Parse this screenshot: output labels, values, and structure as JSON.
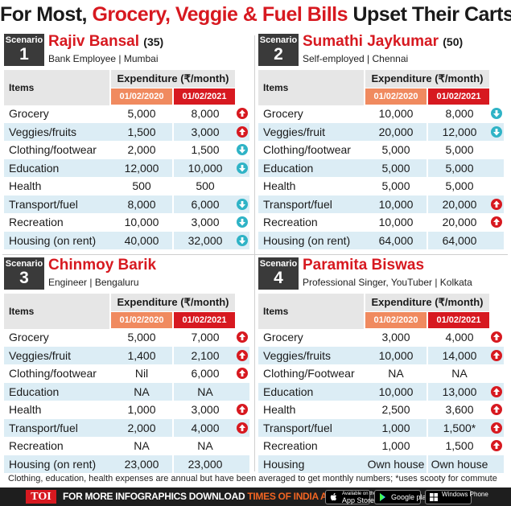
{
  "title": {
    "part1": "For Most, ",
    "part2": "Grocery, Veggie & Fuel Bills",
    "part3": " Upset Their Carts"
  },
  "colors": {
    "accent_red": "#d71920",
    "date_old": "#f08a5f",
    "alt_row": "#dcedf5",
    "down_arrow": "#2fb3c6"
  },
  "panels": [
    {
      "scenario_label": "Scenario",
      "scenario_number": "1",
      "name": "Rajiv Bansal",
      "age": "(35)",
      "job": "Bank Employee | Mumbai",
      "items_header": "Items",
      "expenditure_header": "Expenditure (₹/month)",
      "date1": "01/02/2020",
      "date2": "01/02/2021",
      "rows": [
        {
          "item": "Grocery",
          "v2020": "5,000",
          "v2021": "8,000",
          "trend": "up"
        },
        {
          "item": "Veggies/fruits",
          "v2020": "1,500",
          "v2021": "3,000",
          "trend": "up"
        },
        {
          "item": "Clothing/footwear",
          "v2020": "2,000",
          "v2021": "1,500",
          "trend": "down"
        },
        {
          "item": "Education",
          "v2020": "12,000",
          "v2021": "10,000",
          "trend": "down"
        },
        {
          "item": "Health",
          "v2020": "500",
          "v2021": "500",
          "trend": ""
        },
        {
          "item": "Transport/fuel",
          "v2020": "8,000",
          "v2021": "6,000",
          "trend": "down"
        },
        {
          "item": "Recreation",
          "v2020": "10,000",
          "v2021": "3,000",
          "trend": "down"
        },
        {
          "item": "Housing (on rent)",
          "v2020": "40,000",
          "v2021": "32,000",
          "trend": "down"
        }
      ]
    },
    {
      "scenario_label": "Scenario",
      "scenario_number": "2",
      "name": "Sumathi Jaykumar",
      "age": "(50)",
      "job": "Self-employed | Chennai",
      "items_header": "Items",
      "expenditure_header": "Expenditure (₹/month)",
      "date1": "01/02/2020",
      "date2": "01/02/2021",
      "rows": [
        {
          "item": "Grocery",
          "v2020": "10,000",
          "v2021": "8,000",
          "trend": "down"
        },
        {
          "item": "Veggies/fruit",
          "v2020": "20,000",
          "v2021": "12,000",
          "trend": "down"
        },
        {
          "item": "Clothing/footwear",
          "v2020": "5,000",
          "v2021": "5,000",
          "trend": ""
        },
        {
          "item": "Education",
          "v2020": "5,000",
          "v2021": "5,000",
          "trend": ""
        },
        {
          "item": "Health",
          "v2020": "5,000",
          "v2021": "5,000",
          "trend": ""
        },
        {
          "item": "Transport/fuel",
          "v2020": "10,000",
          "v2021": "20,000",
          "trend": "up"
        },
        {
          "item": "Recreation",
          "v2020": "10,000",
          "v2021": "20,000",
          "trend": "up"
        },
        {
          "item": "Housing (on rent)",
          "v2020": "64,000",
          "v2021": "64,000",
          "trend": ""
        }
      ]
    },
    {
      "scenario_label": "Scenario",
      "scenario_number": "3",
      "name": "Chinmoy Barik",
      "age": "",
      "job": "Engineer | Bengaluru",
      "items_header": "Items",
      "expenditure_header": "Expenditure (₹/month)",
      "date1": "01/02/2020",
      "date2": "01/02/2021",
      "rows": [
        {
          "item": "Grocery",
          "v2020": "5,000",
          "v2021": "7,000",
          "trend": "up"
        },
        {
          "item": "Veggies/fruit",
          "v2020": "1,400",
          "v2021": "2,100",
          "trend": "up"
        },
        {
          "item": "Clothing/footwear",
          "v2020": "Nil",
          "v2021": "6,000",
          "trend": "up"
        },
        {
          "item": "Education",
          "v2020": "NA",
          "v2021": "NA",
          "trend": ""
        },
        {
          "item": "Health",
          "v2020": "1,000",
          "v2021": "3,000",
          "trend": "up"
        },
        {
          "item": "Transport/fuel",
          "v2020": "2,000",
          "v2021": "4,000",
          "trend": "up"
        },
        {
          "item": "Recreation",
          "v2020": "NA",
          "v2021": "NA",
          "trend": ""
        },
        {
          "item": "Housing (on rent)",
          "v2020": "23,000",
          "v2021": "23,000",
          "trend": ""
        }
      ]
    },
    {
      "scenario_label": "Scenario",
      "scenario_number": "4",
      "name": "Paramita Biswas",
      "age": "",
      "job": "Professional Singer, YouTuber | Kolkata",
      "items_header": "Items",
      "expenditure_header": "Expenditure (₹/month)",
      "date1": "01/02/2020",
      "date2": "01/02/2021",
      "rows": [
        {
          "item": "Grocery",
          "v2020": "3,000",
          "v2021": "4,000",
          "trend": "up"
        },
        {
          "item": "Veggies/fruits",
          "v2020": "10,000",
          "v2021": "14,000",
          "trend": "up"
        },
        {
          "item": "Clothing/Footwear",
          "v2020": "NA",
          "v2021": "NA",
          "trend": ""
        },
        {
          "item": "Education",
          "v2020": "10,000",
          "v2021": "13,000",
          "trend": "up"
        },
        {
          "item": "Health",
          "v2020": "2,500",
          "v2021": "3,600",
          "trend": "up"
        },
        {
          "item": "Transport/fuel",
          "v2020": "1,000",
          "v2021": "1,500*",
          "trend": "up"
        },
        {
          "item": "Recreation",
          "v2020": "1,000",
          "v2021": "1,500",
          "trend": "up"
        },
        {
          "item": "Housing",
          "v2020": "Own house",
          "v2021": "Own house",
          "trend": ""
        }
      ]
    }
  ],
  "footnote": "Clothing, education, health expenses are annual but have been averaged to get monthly numbers; *uses scooty for commute",
  "footer": {
    "logo": "TOI",
    "promo": "FOR MORE  INFOGRAPHICS DOWNLOAD ",
    "brand": "TIMES OF INDIA APP",
    "stores": [
      {
        "small": "Available on the",
        "big": "App Store"
      },
      {
        "small": "",
        "big": "Google play"
      },
      {
        "small": "",
        "big": "Windows Phone"
      }
    ]
  }
}
